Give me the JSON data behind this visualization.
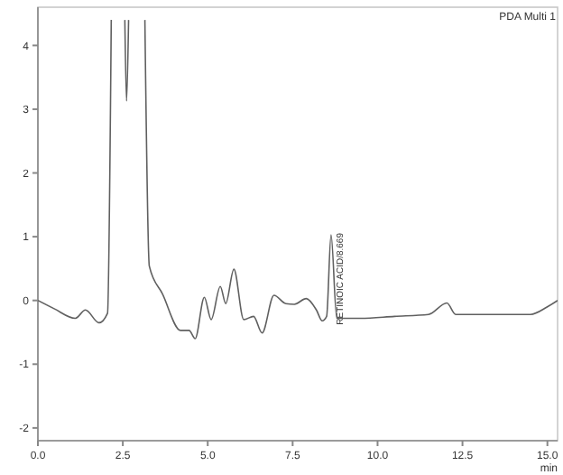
{
  "chart_data": {
    "type": "line",
    "xlabel": "min",
    "annotations": [
      "PDA Multi 1",
      {
        "text": "RETINOIC ACID/8.669",
        "x": 8.669,
        "y": 1.03
      }
    ],
    "x": [
      0,
      0.48,
      1.1,
      1.4,
      1.8,
      2.05,
      2.16,
      2.3,
      2.56,
      2.61,
      2.67,
      2.9,
      3.15,
      3.28,
      3.67,
      4.2,
      4.45,
      4.63,
      4.9,
      5.1,
      5.37,
      5.53,
      5.77,
      6.06,
      6.35,
      6.6,
      6.95,
      7.3,
      7.55,
      7.9,
      8.2,
      8.37,
      8.5,
      8.63,
      8.8,
      9.5,
      10.5,
      11.5,
      12.04,
      12.3,
      13.5,
      14.5,
      15.0,
      15.3
    ],
    "series": [
      {
        "color": "#606060",
        "values": [
          0,
          -0.13,
          -0.28,
          -0.15,
          -0.35,
          -0.2,
          4.4,
          null,
          4.4,
          3.13,
          4.4,
          null,
          4.4,
          0.54,
          0.1,
          -0.47,
          -0.47,
          -0.6,
          0.05,
          -0.3,
          0.22,
          -0.05,
          0.49,
          -0.3,
          -0.25,
          -0.51,
          0.08,
          -0.05,
          -0.06,
          0.03,
          -0.15,
          -0.32,
          -0.25,
          1.03,
          -0.28,
          -0.28,
          -0.25,
          -0.22,
          -0.04,
          -0.22,
          -0.22,
          -0.22,
          -0.1,
          0.0
        ]
      }
    ],
    "xlim": [
      0,
      15.3
    ],
    "ylim": [
      -2.2,
      4.6
    ],
    "xticks": [
      {
        "value": 0,
        "label": "0.0"
      },
      {
        "value": 2.5,
        "label": "2.5"
      },
      {
        "value": 5,
        "label": "5.0"
      },
      {
        "value": 7.5,
        "label": "7.5"
      },
      {
        "value": 10,
        "label": "10.0"
      },
      {
        "value": 12.5,
        "label": "12.5"
      },
      {
        "value": 15,
        "label": "15.0"
      }
    ],
    "yticks": [
      -2,
      -1,
      0,
      1,
      2,
      3,
      4
    ],
    "grid": false,
    "marker": "none",
    "line_style": "solid"
  }
}
